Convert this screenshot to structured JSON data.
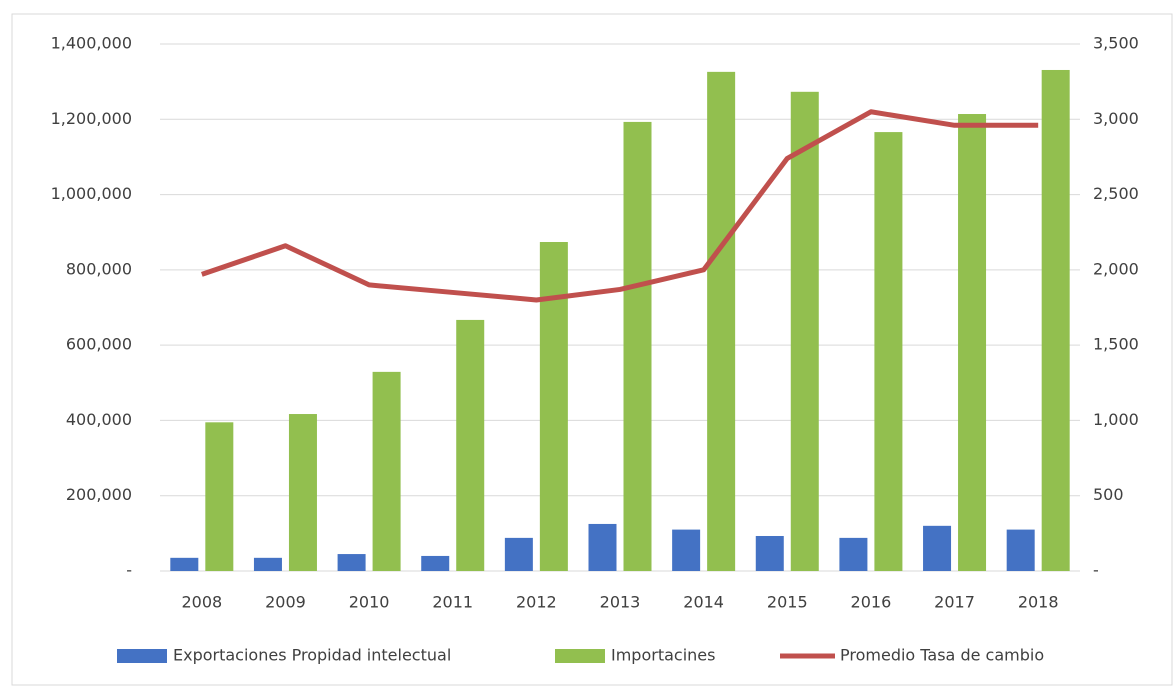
{
  "chart_data": {
    "type": "bar_line",
    "categories": [
      "2008",
      "2009",
      "2010",
      "2011",
      "2012",
      "2013",
      "2014",
      "2015",
      "2016",
      "2017",
      "2018"
    ],
    "series": [
      {
        "name": "Exportaciones Propidad intelectual",
        "color": "#4472c4",
        "type": "bar",
        "values": [
          35000,
          35000,
          45000,
          40000,
          88000,
          125000,
          110000,
          93000,
          88000,
          120000,
          110000
        ]
      },
      {
        "name": "Importacines",
        "color": "#92bf4f",
        "type": "bar",
        "values": [
          395000,
          417000,
          529000,
          667000,
          874000,
          1193000,
          1326000,
          1273000,
          1166000,
          1214000,
          1331000
        ]
      },
      {
        "name": "Promedio Tasa de cambio",
        "color": "#c0504d",
        "type": "line",
        "axis": "y2",
        "values": [
          1970,
          2160,
          1900,
          1850,
          1800,
          1870,
          2000,
          2740,
          3050,
          2960,
          2960
        ]
      }
    ],
    "ylim": [
      0,
      1400000
    ],
    "yticks": [
      {
        "value": 0,
        "label": "-"
      },
      {
        "value": 200000,
        "label": "200,000"
      },
      {
        "value": 400000,
        "label": "400,000"
      },
      {
        "value": 600000,
        "label": "600,000"
      },
      {
        "value": 800000,
        "label": "800,000"
      },
      {
        "value": 1000000,
        "label": "1,000,000"
      },
      {
        "value": 1200000,
        "label": "1,200,000"
      },
      {
        "value": 1400000,
        "label": "1,400,000"
      }
    ],
    "y2lim": [
      0,
      3500
    ],
    "y2ticks": [
      {
        "value": 0,
        "label": "-"
      },
      500,
      {
        "value": 1000,
        "label": "1,000"
      },
      {
        "value": 1500,
        "label": "1,500"
      },
      {
        "value": 2000,
        "label": "2,000"
      },
      {
        "value": 2500,
        "label": "2,500"
      },
      {
        "value": 3000,
        "label": "3,000"
      },
      {
        "value": 3500,
        "label": "3,500"
      }
    ],
    "grid": true,
    "legend": "bottom"
  }
}
